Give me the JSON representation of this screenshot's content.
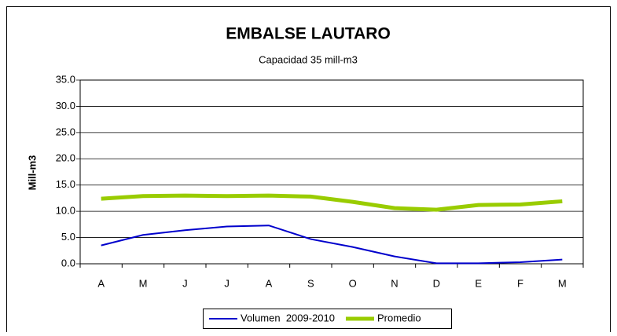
{
  "chart_data": {
    "type": "line",
    "title": "EMBALSE LAUTARO",
    "subtitle": "Capacidad 35 mill-m3",
    "y_label": "Mill-m3",
    "categories": [
      "A",
      "M",
      "J",
      "J",
      "A",
      "S",
      "O",
      "N",
      "D",
      "E",
      "F",
      "M"
    ],
    "series": [
      {
        "name": "Volumen  2009-2010",
        "color": "#0000cc",
        "values": [
          3.5,
          5.5,
          6.4,
          7.1,
          7.3,
          4.7,
          3.2,
          1.4,
          0.1,
          0.1,
          0.3,
          0.8
        ]
      },
      {
        "name": "Promedio",
        "color": "#99cc00",
        "values": [
          12.4,
          12.9,
          13.0,
          12.9,
          13.0,
          12.8,
          11.8,
          10.6,
          10.3,
          11.2,
          11.3,
          11.9
        ]
      }
    ],
    "ylim": [
      0,
      35
    ],
    "yticks": [
      {
        "value": 0,
        "label": "0.0"
      },
      {
        "value": 5,
        "label": "5.0"
      },
      {
        "value": 10,
        "label": "10.0"
      },
      {
        "value": 15,
        "label": "15.0"
      },
      {
        "value": 20,
        "label": "20.0"
      },
      {
        "value": 25,
        "label": "25.0"
      },
      {
        "value": 30,
        "label": "30.0"
      },
      {
        "value": 35,
        "label": "35.0"
      }
    ],
    "grid": true,
    "legend": "bottom"
  }
}
